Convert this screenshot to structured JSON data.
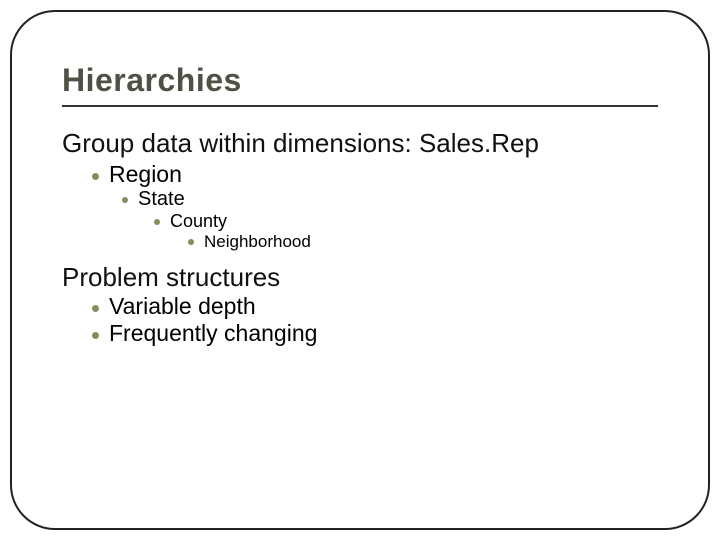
{
  "colors": {
    "border": "#222222",
    "title": "#505044",
    "text": "#111111",
    "bullet": "#8a8a5a",
    "underline": "#333333",
    "background": "#ffffff"
  },
  "slide": {
    "title": "Hierarchies",
    "section1": {
      "heading": "Group data within dimensions: Sales.Rep",
      "bullets": [
        {
          "level": 0,
          "label": "Region"
        },
        {
          "level": 1,
          "label": "State"
        },
        {
          "level": 2,
          "label": "County"
        },
        {
          "level": 3,
          "label": "Neighborhood"
        }
      ]
    },
    "section2": {
      "heading": "Problem structures",
      "bullets": [
        {
          "level": 0,
          "label": "Variable depth"
        },
        {
          "level": 0,
          "label": "Frequently changing"
        }
      ]
    }
  }
}
